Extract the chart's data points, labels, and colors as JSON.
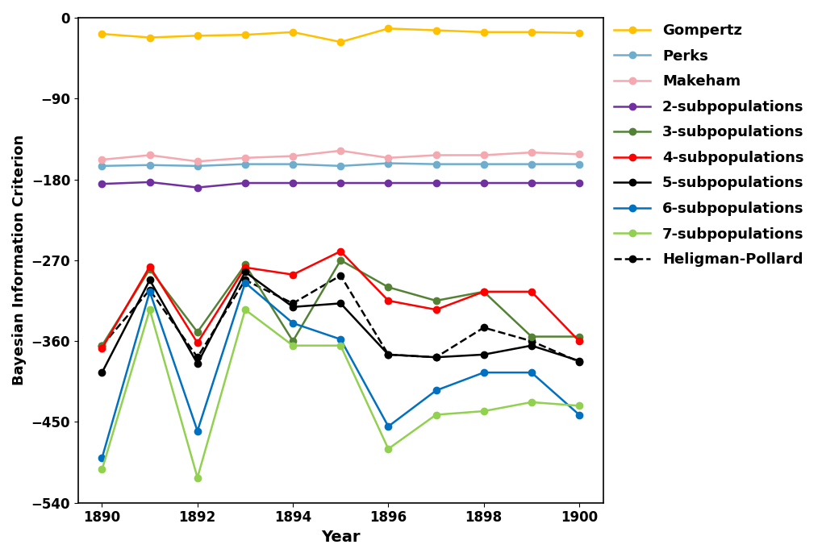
{
  "years": [
    1890,
    1891,
    1892,
    1893,
    1894,
    1895,
    1896,
    1897,
    1898,
    1899,
    1900
  ],
  "gompertz": [
    -18,
    -22,
    -20,
    -19,
    -16,
    -27,
    -12,
    -14,
    -16,
    -16,
    -17
  ],
  "perks": [
    -165,
    -164,
    -165,
    -163,
    -163,
    -165,
    -162,
    -163,
    -163,
    -163,
    -163
  ],
  "makeham": [
    -158,
    -153,
    -160,
    -156,
    -154,
    -148,
    -156,
    -153,
    -153,
    -150,
    -152
  ],
  "sub2": [
    -185,
    -183,
    -189,
    -184,
    -184,
    -184,
    -184,
    -184,
    -184,
    -184,
    -184
  ],
  "sub3": [
    -365,
    -280,
    -350,
    -275,
    -360,
    -270,
    -300,
    -315,
    -305,
    -355,
    -355
  ],
  "sub4": [
    -368,
    -277,
    -362,
    -278,
    -286,
    -260,
    -315,
    -325,
    -305,
    -305,
    -360
  ],
  "sub5": [
    -395,
    -292,
    -385,
    -283,
    -322,
    -318,
    -375,
    -378,
    -375,
    -365,
    -382
  ],
  "sub6": [
    -490,
    -305,
    -460,
    -295,
    -340,
    -358,
    -455,
    -415,
    -395,
    -395,
    -442
  ],
  "sub7": [
    -503,
    -325,
    -512,
    -325,
    -365,
    -365,
    -480,
    -442,
    -438,
    -428,
    -432
  ],
  "heligman": [
    -365,
    -303,
    -378,
    -292,
    -318,
    -287,
    -375,
    -378,
    -345,
    -360,
    -383
  ],
  "colors": {
    "gompertz": "#FFC000",
    "perks": "#70ADCC",
    "makeham": "#F4A8B0",
    "sub2": "#7030A0",
    "sub3": "#548235",
    "sub4": "#FF0000",
    "sub5": "#000000",
    "sub6": "#0070C0",
    "sub7": "#92D050",
    "heligman": "#000000"
  },
  "ylabel": "Bayesian Information Criterion",
  "xlabel": "Year",
  "ylim": [
    -540,
    0
  ],
  "yticks": [
    0,
    -90,
    -180,
    -270,
    -360,
    -450,
    -540
  ],
  "xticks": [
    1890,
    1892,
    1894,
    1896,
    1898,
    1900
  ],
  "legend_fontsize": 13,
  "axis_label_fontsize": 14,
  "tick_fontsize": 12
}
